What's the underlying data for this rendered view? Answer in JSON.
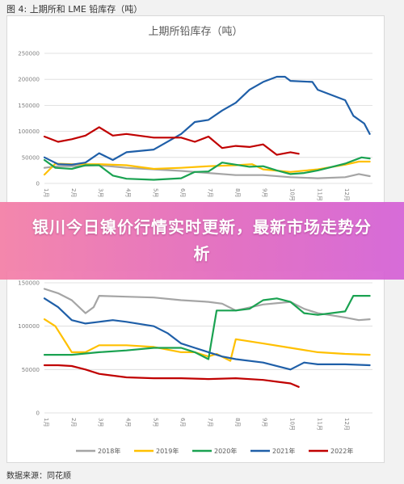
{
  "figure_caption": "图 4:  上期所和 LME 铅库存（吨）",
  "banner_title": "银川今日镍价行情实时更新，最新市场走势分析",
  "source": "数据来源：同花顺",
  "colors": {
    "2018": "#a5a5a5",
    "2019": "#ffc000",
    "2020": "#1aa251",
    "2021": "#1f5fa8",
    "2022": "#c00000"
  },
  "chart_data": [
    {
      "type": "line",
      "title": "上期所铅库存（吨）",
      "ylim": [
        0,
        250000
      ],
      "yticks": [
        "0",
        "50000",
        "100000",
        "150000",
        "200000",
        "250000"
      ],
      "xlim": [
        1,
        13
      ],
      "xticks": [
        "1月",
        "2月",
        "3月",
        "4月",
        "5月",
        "6月",
        "7月",
        "8月",
        "9月",
        "10月",
        "11月",
        "12月"
      ],
      "grid": true,
      "series": [
        {
          "name": "2018年",
          "key": "2018",
          "points": [
            [
              1,
              30000
            ],
            [
              1.5,
              33000
            ],
            [
              2,
              33000
            ],
            [
              3,
              35000
            ],
            [
              4,
              30000
            ],
            [
              5,
              27000
            ],
            [
              6,
              24000
            ],
            [
              7,
              20000
            ],
            [
              8,
              16000
            ],
            [
              9,
              16000
            ],
            [
              10,
              12000
            ],
            [
              11,
              10000
            ],
            [
              12,
              12000
            ],
            [
              12.5,
              18000
            ],
            [
              12.9,
              14000
            ]
          ]
        },
        {
          "name": "2019年",
          "key": "2019",
          "points": [
            [
              1,
              17000
            ],
            [
              1.4,
              38000
            ],
            [
              2,
              37000
            ],
            [
              3,
              37000
            ],
            [
              4,
              35000
            ],
            [
              5,
              28000
            ],
            [
              6,
              30000
            ],
            [
              7,
              33000
            ],
            [
              8,
              35000
            ],
            [
              8.6,
              37000
            ],
            [
              9,
              27000
            ],
            [
              10,
              22000
            ],
            [
              11,
              27000
            ],
            [
              12,
              36000
            ],
            [
              12.5,
              42000
            ],
            [
              12.9,
              42000
            ]
          ]
        },
        {
          "name": "2020年",
          "key": "2020",
          "points": [
            [
              1,
              45000
            ],
            [
              1.4,
              30000
            ],
            [
              2,
              28000
            ],
            [
              2.5,
              35000
            ],
            [
              3,
              35000
            ],
            [
              3.5,
              15000
            ],
            [
              4,
              9000
            ],
            [
              5,
              7000
            ],
            [
              6,
              10000
            ],
            [
              6.5,
              22000
            ],
            [
              7,
              23000
            ],
            [
              7.5,
              40000
            ],
            [
              8,
              36000
            ],
            [
              8.5,
              32000
            ],
            [
              9,
              33000
            ],
            [
              9.5,
              25000
            ],
            [
              10,
              18000
            ],
            [
              10.5,
              20000
            ],
            [
              11,
              25000
            ],
            [
              12,
              38000
            ],
            [
              12.6,
              50000
            ],
            [
              12.9,
              48000
            ]
          ]
        },
        {
          "name": "2021年",
          "key": "2021",
          "points": [
            [
              1,
              50000
            ],
            [
              1.5,
              37000
            ],
            [
              2,
              36000
            ],
            [
              2.5,
              40000
            ],
            [
              3,
              58000
            ],
            [
              3.5,
              45000
            ],
            [
              4,
              60000
            ],
            [
              5,
              65000
            ],
            [
              6,
              95000
            ],
            [
              6.5,
              118000
            ],
            [
              7,
              122000
            ],
            [
              7.5,
              140000
            ],
            [
              8,
              155000
            ],
            [
              8.5,
              180000
            ],
            [
              9,
              195000
            ],
            [
              9.5,
              205000
            ],
            [
              9.8,
              205000
            ],
            [
              10,
              197000
            ],
            [
              10.8,
              195000
            ],
            [
              11,
              180000
            ],
            [
              12,
              160000
            ],
            [
              12.3,
              130000
            ],
            [
              12.7,
              115000
            ],
            [
              12.9,
              95000
            ]
          ]
        },
        {
          "name": "2022年",
          "key": "2022",
          "points": [
            [
              1,
              90000
            ],
            [
              1.5,
              80000
            ],
            [
              2,
              85000
            ],
            [
              2.5,
              92000
            ],
            [
              3,
              108000
            ],
            [
              3.5,
              92000
            ],
            [
              4,
              95000
            ],
            [
              5,
              88000
            ],
            [
              6,
              88000
            ],
            [
              6.5,
              80000
            ],
            [
              7,
              90000
            ],
            [
              7.5,
              68000
            ],
            [
              8,
              72000
            ],
            [
              8.5,
              70000
            ],
            [
              9,
              75000
            ],
            [
              9.5,
              55000
            ],
            [
              10,
              60000
            ],
            [
              10.3,
              57000
            ]
          ]
        }
      ]
    },
    {
      "type": "line",
      "title": "",
      "ylim": [
        0,
        150000
      ],
      "yticks": [
        "0",
        "50000",
        "100000",
        "150000"
      ],
      "xlim": [
        1,
        13
      ],
      "xticks": [
        "1月",
        "2月",
        "3月",
        "4月",
        "5月",
        "6月",
        "7月",
        "8月",
        "9月",
        "10月",
        "11月",
        "12月"
      ],
      "grid": true,
      "legend": {
        "position": "bottom"
      },
      "series": [
        {
          "name": "2018年",
          "key": "2018",
          "points": [
            [
              1,
              143000
            ],
            [
              1.5,
              138000
            ],
            [
              2,
              130000
            ],
            [
              2.5,
              115000
            ],
            [
              2.8,
              122000
            ],
            [
              3,
              135000
            ],
            [
              4,
              134000
            ],
            [
              5,
              133000
            ],
            [
              6,
              130000
            ],
            [
              7,
              128000
            ],
            [
              7.5,
              126000
            ],
            [
              8,
              118000
            ],
            [
              9,
              125000
            ],
            [
              10,
              128000
            ],
            [
              10.5,
              120000
            ],
            [
              11,
              115000
            ],
            [
              12,
              110000
            ],
            [
              12.5,
              107000
            ],
            [
              12.9,
              108000
            ]
          ]
        },
        {
          "name": "2019年",
          "key": "2019",
          "points": [
            [
              1,
              108000
            ],
            [
              1.4,
              100000
            ],
            [
              1.8,
              80000
            ],
            [
              2,
              70000
            ],
            [
              2.5,
              70000
            ],
            [
              3,
              78000
            ],
            [
              4,
              78000
            ],
            [
              5,
              76000
            ],
            [
              6,
              70000
            ],
            [
              6.5,
              70000
            ],
            [
              7,
              65000
            ],
            [
              7.3,
              68000
            ],
            [
              7.8,
              60000
            ],
            [
              8,
              85000
            ],
            [
              9,
              80000
            ],
            [
              10,
              75000
            ],
            [
              11,
              70000
            ],
            [
              12,
              68000
            ],
            [
              12.9,
              67000
            ]
          ]
        },
        {
          "name": "2020年",
          "key": "2020",
          "points": [
            [
              1,
              67000
            ],
            [
              2,
              67000
            ],
            [
              3,
              70000
            ],
            [
              4,
              72000
            ],
            [
              5,
              75000
            ],
            [
              6,
              75000
            ],
            [
              6.5,
              70000
            ],
            [
              7,
              62000
            ],
            [
              7.3,
              118000
            ],
            [
              8,
              118000
            ],
            [
              8.5,
              120000
            ],
            [
              9,
              130000
            ],
            [
              9.5,
              132000
            ],
            [
              10,
              128000
            ],
            [
              10.5,
              115000
            ],
            [
              11,
              113000
            ],
            [
              12,
              117000
            ],
            [
              12.3,
              135000
            ],
            [
              12.9,
              135000
            ]
          ]
        },
        {
          "name": "2021年",
          "key": "2021",
          "points": [
            [
              1,
              132000
            ],
            [
              1.5,
              122000
            ],
            [
              2,
              107000
            ],
            [
              2.5,
              103000
            ],
            [
              3,
              105000
            ],
            [
              3.5,
              107000
            ],
            [
              4,
              105000
            ],
            [
              5,
              100000
            ],
            [
              5.5,
              92000
            ],
            [
              6,
              80000
            ],
            [
              6.5,
              75000
            ],
            [
              7,
              70000
            ],
            [
              7.5,
              65000
            ],
            [
              8,
              62000
            ],
            [
              9,
              58000
            ],
            [
              10,
              50000
            ],
            [
              10.5,
              58000
            ],
            [
              11,
              56000
            ],
            [
              12,
              56000
            ],
            [
              12.9,
              55000
            ]
          ]
        },
        {
          "name": "2022年",
          "key": "2022",
          "points": [
            [
              1,
              55000
            ],
            [
              1.5,
              55000
            ],
            [
              2,
              54000
            ],
            [
              2.5,
              50000
            ],
            [
              3,
              45000
            ],
            [
              4,
              41000
            ],
            [
              5,
              40000
            ],
            [
              6,
              40000
            ],
            [
              7,
              39000
            ],
            [
              8,
              40000
            ],
            [
              9,
              38000
            ],
            [
              9.5,
              36000
            ],
            [
              10,
              34000
            ],
            [
              10.3,
              30000
            ]
          ]
        }
      ]
    }
  ]
}
